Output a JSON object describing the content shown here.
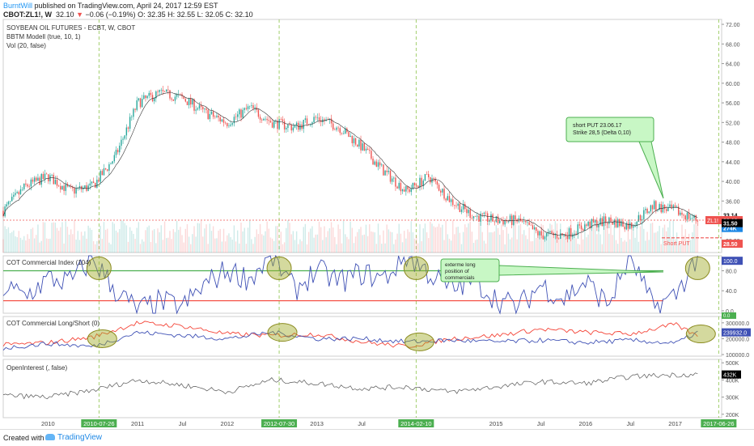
{
  "header": {
    "author": "BurntWill",
    "published": " published on TradingView.com, April 24, 2017 12:59 EST",
    "symbol": "CBOT:ZL1!, W",
    "last": "32.10",
    "change": "−0.06 (−0.19%)",
    "ohlc": "O: 32.35  H: 32.55  L: 32.05  C: 32.10"
  },
  "price_pane": {
    "title": "SOYBEAN OIL FUTURES - ECBT, W, CBOT",
    "indicator1": "BBTM Modell (true, 10, 1)",
    "indicator2": "Vol (20, false)",
    "annotation": [
      "short PUT 23.06.17",
      "Strike 28,5 (Delta 0,10)"
    ],
    "short_put_label": "Short PUT",
    "symbol_tag": "ZL1!"
  },
  "cot_index_pane": {
    "title": "COT Commercial Index (104)",
    "annotation": [
      "exterme long",
      "position of",
      "commercials"
    ]
  },
  "cot_ls_pane": {
    "title": "COT Commercial Long/Short (0)"
  },
  "oi_pane": {
    "title": "OpenInterest (, false)"
  },
  "footer": {
    "created": "Created with",
    "brand": "TradingView"
  },
  "colors": {
    "up": "#26a69a",
    "down": "#ef5350",
    "blue": "#3f51b5",
    "green_line": "#4caf50",
    "red_line": "#f44336"
  },
  "chart_data": {
    "type": "candlestick",
    "x_axis": {
      "ticks": [
        "2010",
        "2010-07-26",
        "2011",
        "Jul",
        "2012",
        "2012-07-30",
        "2013",
        "Jul",
        "2014-02-10",
        "2015",
        "Jul",
        "2016",
        "Jul",
        "2017",
        "2017-06-26"
      ],
      "highlighted": [
        "2010-07-26",
        "2012-07-30",
        "2014-02-10",
        "2017-06-26"
      ],
      "range": [
        "2009-07",
        "2017-07"
      ]
    },
    "price": {
      "ylim": [
        25.5,
        73
      ],
      "ticks": [
        28.0,
        32.0,
        36.0,
        40.0,
        44.0,
        48.0,
        52.0,
        56.0,
        60.0,
        64.0,
        68.0,
        72.0
      ],
      "tick_labels": [
        "28.00",
        "32.00",
        "36.00",
        "40.00",
        "44.00",
        "48.00",
        "52.00",
        "56.00",
        "60.00",
        "64.00",
        "68.00",
        "72.00"
      ],
      "last": 32.1,
      "bb_upper": 33.14,
      "bb_lower": 31.5,
      "strike": 28.5,
      "volume_label": "274K",
      "scale_labels": [
        "33.14",
        "32.10",
        "274K",
        "31.50",
        "28.50"
      ],
      "close_by_quarter": [
        {
          "d": "2009-07",
          "c": 34
        },
        {
          "d": "2009-10",
          "c": 39
        },
        {
          "d": "2010-01",
          "c": 41
        },
        {
          "d": "2010-04",
          "c": 38
        },
        {
          "d": "2010-07",
          "c": 39
        },
        {
          "d": "2010-10",
          "c": 45
        },
        {
          "d": "2011-01",
          "c": 56
        },
        {
          "d": "2011-04",
          "c": 58
        },
        {
          "d": "2011-07",
          "c": 57
        },
        {
          "d": "2011-10",
          "c": 54
        },
        {
          "d": "2012-01",
          "c": 52
        },
        {
          "d": "2012-04",
          "c": 55
        },
        {
          "d": "2012-07",
          "c": 52
        },
        {
          "d": "2012-10",
          "c": 51
        },
        {
          "d": "2013-01",
          "c": 53
        },
        {
          "d": "2013-04",
          "c": 51
        },
        {
          "d": "2013-07",
          "c": 47
        },
        {
          "d": "2013-10",
          "c": 42
        },
        {
          "d": "2014-01",
          "c": 38
        },
        {
          "d": "2014-04",
          "c": 41
        },
        {
          "d": "2014-07",
          "c": 36
        },
        {
          "d": "2014-10",
          "c": 33
        },
        {
          "d": "2015-01",
          "c": 32
        },
        {
          "d": "2015-04",
          "c": 32
        },
        {
          "d": "2015-07",
          "c": 29
        },
        {
          "d": "2015-10",
          "c": 29
        },
        {
          "d": "2016-01",
          "c": 31
        },
        {
          "d": "2016-04",
          "c": 32
        },
        {
          "d": "2016-07",
          "c": 31
        },
        {
          "d": "2016-10",
          "c": 35
        },
        {
          "d": "2017-01",
          "c": 34
        },
        {
          "d": "2017-04",
          "c": 32.1
        }
      ]
    },
    "cot_index": {
      "ylim": [
        -5,
        110
      ],
      "ticks": [
        0.0,
        40.0,
        80.0
      ],
      "tick_labels": [
        "0.0",
        "40.0",
        "80.0"
      ],
      "upper_level": 80,
      "lower_level": 20,
      "last": 100.0,
      "last_label": "100.0",
      "low_label": "0.0",
      "values": [
        {
          "d": "2009-07",
          "v": 45
        },
        {
          "d": "2009-10",
          "v": 30
        },
        {
          "d": "2010-01",
          "v": 60
        },
        {
          "d": "2010-04",
          "v": 55
        },
        {
          "d": "2010-07",
          "v": 95
        },
        {
          "d": "2010-10",
          "v": 40
        },
        {
          "d": "2011-01",
          "v": 5
        },
        {
          "d": "2011-04",
          "v": 20
        },
        {
          "d": "2011-07",
          "v": 10
        },
        {
          "d": "2011-10",
          "v": 50
        },
        {
          "d": "2012-01",
          "v": 75
        },
        {
          "d": "2012-04",
          "v": 60
        },
        {
          "d": "2012-07",
          "v": 100
        },
        {
          "d": "2012-10",
          "v": 40
        },
        {
          "d": "2013-01",
          "v": 75
        },
        {
          "d": "2013-04",
          "v": 55
        },
        {
          "d": "2013-07",
          "v": 70
        },
        {
          "d": "2013-10",
          "v": 60
        },
        {
          "d": "2014-01",
          "v": 100
        },
        {
          "d": "2014-04",
          "v": 70
        },
        {
          "d": "2014-07",
          "v": 40
        },
        {
          "d": "2014-10",
          "v": 60
        },
        {
          "d": "2015-01",
          "v": 25
        },
        {
          "d": "2015-04",
          "v": 10
        },
        {
          "d": "2015-07",
          "v": 50
        },
        {
          "d": "2015-10",
          "v": 25
        },
        {
          "d": "2016-01",
          "v": 55
        },
        {
          "d": "2016-04",
          "v": 15
        },
        {
          "d": "2016-07",
          "v": 100
        },
        {
          "d": "2016-10",
          "v": 10
        },
        {
          "d": "2017-01",
          "v": 30
        },
        {
          "d": "2017-04",
          "v": 100
        }
      ]
    },
    "cot_long_short": {
      "ylim": [
        90000,
        340000
      ],
      "ticks": [
        100000,
        200000,
        300000
      ],
      "tick_labels": [
        "100000.0",
        "200000.0",
        "300000.0"
      ],
      "last": 239932.0,
      "last_label": "239932.0",
      "series": [
        {
          "color": "#f44336",
          "values": [
            {
              "d": "2009-07",
              "v": 160000
            },
            {
              "d": "2010-01",
              "v": 175000
            },
            {
              "d": "2010-07",
              "v": 210000
            },
            {
              "d": "2011-01",
              "v": 300000
            },
            {
              "d": "2011-07",
              "v": 280000
            },
            {
              "d": "2012-01",
              "v": 230000
            },
            {
              "d": "2012-07",
              "v": 220000
            },
            {
              "d": "2013-01",
              "v": 230000
            },
            {
              "d": "2013-07",
              "v": 180000
            },
            {
              "d": "2014-01",
              "v": 150000
            },
            {
              "d": "2014-07",
              "v": 200000
            },
            {
              "d": "2015-01",
              "v": 220000
            },
            {
              "d": "2015-07",
              "v": 260000
            },
            {
              "d": "2016-01",
              "v": 240000
            },
            {
              "d": "2016-07",
              "v": 230000
            },
            {
              "d": "2017-01",
              "v": 290000
            },
            {
              "d": "2017-04",
              "v": 215000
            }
          ]
        },
        {
          "color": "#3f51b5",
          "values": [
            {
              "d": "2009-07",
              "v": 140000
            },
            {
              "d": "2010-01",
              "v": 170000
            },
            {
              "d": "2010-07",
              "v": 150000
            },
            {
              "d": "2011-01",
              "v": 240000
            },
            {
              "d": "2011-07",
              "v": 220000
            },
            {
              "d": "2012-01",
              "v": 200000
            },
            {
              "d": "2012-07",
              "v": 240000
            },
            {
              "d": "2013-01",
              "v": 200000
            },
            {
              "d": "2013-07",
              "v": 200000
            },
            {
              "d": "2014-01",
              "v": 180000
            },
            {
              "d": "2014-07",
              "v": 190000
            },
            {
              "d": "2015-01",
              "v": 180000
            },
            {
              "d": "2015-07",
              "v": 190000
            },
            {
              "d": "2016-01",
              "v": 175000
            },
            {
              "d": "2016-07",
              "v": 190000
            },
            {
              "d": "2017-01",
              "v": 170000
            },
            {
              "d": "2017-04",
              "v": 239932
            }
          ]
        }
      ]
    },
    "open_interest": {
      "ylim": [
        180000,
        520000
      ],
      "ticks": [
        200000,
        300000,
        400000,
        500000
      ],
      "tick_labels": [
        "200K",
        "300K",
        "400K",
        "500K"
      ],
      "last": 432000,
      "last_label": "432K",
      "values": [
        {
          "d": "2009-07",
          "v": 310000
        },
        {
          "d": "2010-01",
          "v": 300000
        },
        {
          "d": "2010-07",
          "v": 340000
        },
        {
          "d": "2011-01",
          "v": 400000
        },
        {
          "d": "2011-07",
          "v": 370000
        },
        {
          "d": "2012-01",
          "v": 330000
        },
        {
          "d": "2012-07",
          "v": 400000
        },
        {
          "d": "2013-01",
          "v": 380000
        },
        {
          "d": "2013-07",
          "v": 350000
        },
        {
          "d": "2014-01",
          "v": 360000
        },
        {
          "d": "2014-07",
          "v": 330000
        },
        {
          "d": "2015-01",
          "v": 360000
        },
        {
          "d": "2015-07",
          "v": 390000
        },
        {
          "d": "2016-01",
          "v": 380000
        },
        {
          "d": "2016-07",
          "v": 420000
        },
        {
          "d": "2017-01",
          "v": 430000
        },
        {
          "d": "2017-04",
          "v": 432000
        }
      ]
    }
  }
}
